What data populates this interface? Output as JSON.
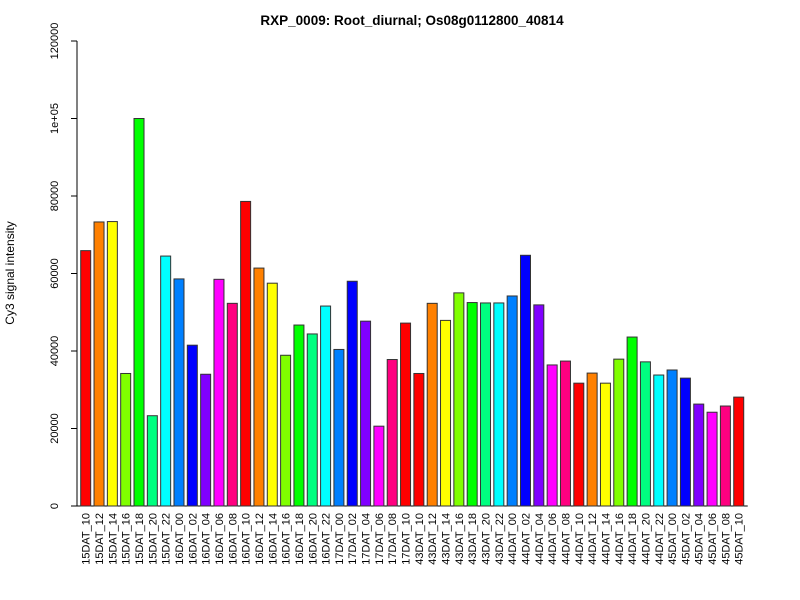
{
  "chart_data": {
    "type": "bar",
    "title": "RXP_0009: Root_diurnal; Os08g0112800_40814",
    "xlabel": "",
    "ylabel": "Cy3 signal intensity",
    "ylim": [
      0,
      120000
    ],
    "grid": false,
    "legend_position": "none",
    "y_ticks": [
      {
        "value": 0,
        "label": "0"
      },
      {
        "value": 20000,
        "label": "20000"
      },
      {
        "value": 40000,
        "label": "40000"
      },
      {
        "value": 60000,
        "label": "60000"
      },
      {
        "value": 80000,
        "label": "80000"
      },
      {
        "value": 100000,
        "label": "1e+05"
      },
      {
        "value": 120000,
        "label": "120000"
      }
    ],
    "categories": [
      "15DAT_10",
      "15DAT_12",
      "15DAT_14",
      "15DAT_16",
      "15DAT_18",
      "15DAT_20",
      "15DAT_22",
      "16DAT_00",
      "16DAT_02",
      "16DAT_04",
      "16DAT_06",
      "16DAT_08",
      "16DAT_10",
      "16DAT_12",
      "16DAT_14",
      "16DAT_16",
      "16DAT_18",
      "16DAT_20",
      "16DAT_22",
      "17DAT_00",
      "17DAT_02",
      "17DAT_04",
      "17DAT_06",
      "17DAT_08",
      "17DAT_10",
      "43DAT_10",
      "43DAT_12",
      "43DAT_14",
      "43DAT_16",
      "43DAT_18",
      "43DAT_20",
      "43DAT_22",
      "44DAT_00",
      "44DAT_02",
      "44DAT_04",
      "44DAT_06",
      "44DAT_08",
      "44DAT_10",
      "44DAT_12",
      "44DAT_14",
      "44DAT_16",
      "44DAT_18",
      "44DAT_20",
      "44DAT_22",
      "45DAT_00",
      "45DAT_02",
      "45DAT_04",
      "45DAT_06",
      "45DAT_08",
      "45DAT_10"
    ],
    "values": [
      65900,
      73300,
      73400,
      34200,
      100000,
      23300,
      64500,
      58600,
      41500,
      34000,
      58500,
      52300,
      78600,
      61400,
      57500,
      38900,
      46700,
      44400,
      51600,
      40400,
      58000,
      47700,
      20600,
      37800,
      47200,
      34200,
      52300,
      47900,
      55000,
      52500,
      52400,
      52400,
      54200,
      64700,
      51900,
      36400,
      37400,
      31700,
      34300,
      31700,
      37900,
      43600,
      37200,
      33800,
      35100,
      33000,
      26300,
      24200,
      25800,
      28100
    ],
    "bar_colors": [
      "#FF0000",
      "#FF8000",
      "#FFFF00",
      "#80FF00",
      "#00FF00",
      "#00FF80",
      "#00FFFF",
      "#0080FF",
      "#0000FF",
      "#8000FF",
      "#FF00FF",
      "#FF0080",
      "#FF0000",
      "#FF8000",
      "#FFFF00",
      "#80FF00",
      "#00FF00",
      "#00FF80",
      "#00FFFF",
      "#0080FF",
      "#0000FF",
      "#8000FF",
      "#FF00FF",
      "#FF0080",
      "#FF0000",
      "#FF0000",
      "#FF8000",
      "#FFFF00",
      "#80FF00",
      "#00FF00",
      "#00FF80",
      "#00FFFF",
      "#0080FF",
      "#0000FF",
      "#8000FF",
      "#FF00FF",
      "#FF0080",
      "#FF0000",
      "#FF8000",
      "#FFFF00",
      "#80FF00",
      "#00FF00",
      "#00FF80",
      "#00FFFF",
      "#0080FF",
      "#0000FF",
      "#8000FF",
      "#FF00FF",
      "#FF0080",
      "#FF0000"
    ],
    "hour_color_map": {
      "10": "#FF0000",
      "12": "#FF8000",
      "14": "#FFFF00",
      "16": "#80FF00",
      "18": "#00FF00",
      "20": "#00FF80",
      "22": "#00FFFF",
      "00": "#0080FF",
      "02": "#0000FF",
      "04": "#8000FF",
      "06": "#FF00FF",
      "08": "#FF0080"
    },
    "bar_border_color": "#333333",
    "axis_color": "#000000"
  }
}
